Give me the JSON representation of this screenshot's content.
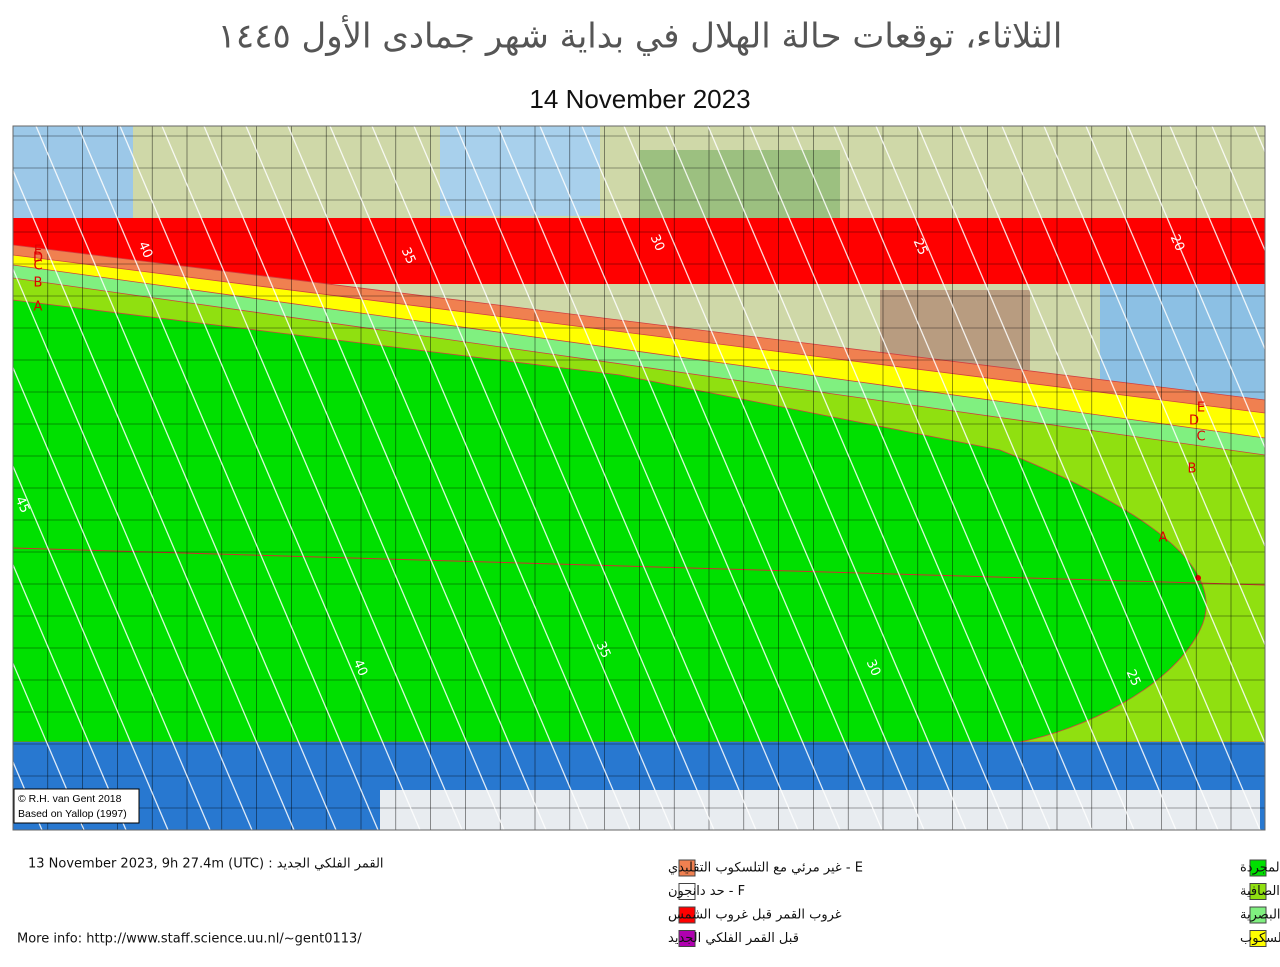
{
  "title": "الثلاثاء، توقعات حالة الهلال في بداية شهر جمادى الأول ١٤٤٥",
  "date": "14 November 2023",
  "credits": [
    "© R.H. van Gent 2018",
    "Based on Yallop (1997)"
  ],
  "contour_labels": [
    "40",
    "35",
    "30",
    "25",
    "20",
    "45",
    "40",
    "35",
    "30",
    "25"
  ],
  "zone_labels": [
    "E",
    "D",
    "C",
    "B",
    "A",
    "E",
    "D",
    "C",
    "B",
    "A"
  ],
  "new_moon": "13 November 2023, 9h 27.4m (UTC) : القمر الفلكي الجديد",
  "more_info": "More info: http://www.staff.science.uu.nl/~gent0113/",
  "legend_left": [
    {
      "label": "E - غير مرئي مع التلسكوب التقليدي",
      "color": "#f08050"
    },
    {
      "label": "F - حد دانجون",
      "color": "#ffffff"
    },
    {
      "label": "غروب القمر قبل غروب الشمس",
      "color": "#ff0000"
    },
    {
      "label": "قبل القمر  الفلكي الجديد",
      "color": "#b000b0"
    }
  ],
  "legend_right": [
    {
      "label": "A - يمكن رؤية الهلال بالعين المجردة",
      "color": "#00e000"
    },
    {
      "label": "B - يمكن رؤية الهلال بالعين المجردة اذا كانت السماء الصافية",
      "color": "#90e010"
    },
    {
      "label": "C - يمكن رؤية الهلال بالعين المجردة بعد العثور عليها مع المساعدات البصرية",
      "color": "#80f080"
    },
    {
      "label": "D - يمكن رؤية الهلال بالتلسكوب",
      "color": "#ffff00"
    }
  ]
}
